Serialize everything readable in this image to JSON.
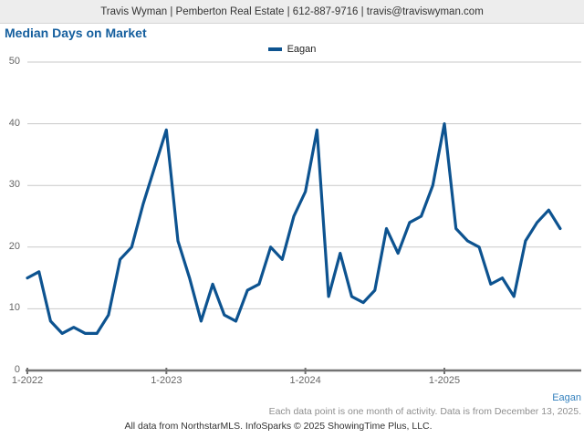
{
  "header": {
    "contact_line": "Travis Wyman | Pemberton Real Estate | 612-887-9716 | travis@traviswyman.com"
  },
  "title": "Median Days on Market",
  "legend": {
    "label": "Eagan"
  },
  "footer": {
    "series_caption": "Eagan",
    "note": "Each data point is one month of activity. Data is from December 13, 2025.",
    "attribution": "All data from NorthstarMLS. InfoSparks © 2025 ShowingTime Plus, LLC."
  },
  "colors": {
    "line": "#0d5390",
    "title": "#155f9e",
    "eagan_caption": "#3380bd",
    "grid": "#c9c9c9",
    "axis": "#737373",
    "header_bg": "#ededed"
  },
  "chart_data": {
    "type": "line",
    "title": "Median Days on Market",
    "xlabel": "",
    "ylabel": "",
    "ylim": [
      0,
      50
    ],
    "y_ticks": [
      0,
      10,
      20,
      30,
      40,
      50
    ],
    "x_tick_labels": [
      "1-2022",
      "1-2023",
      "1-2024",
      "1-2025"
    ],
    "x_tick_month_index": [
      0,
      12,
      24,
      36
    ],
    "grid": "horizontal",
    "legend_position": "top-center",
    "series": [
      {
        "name": "Eagan",
        "start_month": "1-2022",
        "months_per_point": 1,
        "values": [
          15,
          16,
          8,
          6,
          7,
          6,
          6,
          9,
          18,
          20,
          27,
          33,
          39,
          21,
          15,
          8,
          14,
          9,
          8,
          13,
          14,
          20,
          18,
          25,
          29,
          39,
          12,
          19,
          12,
          11,
          13,
          23,
          19,
          24,
          25,
          30,
          40,
          23,
          21,
          20,
          14,
          15,
          12,
          21,
          24,
          26,
          23
        ]
      }
    ]
  }
}
